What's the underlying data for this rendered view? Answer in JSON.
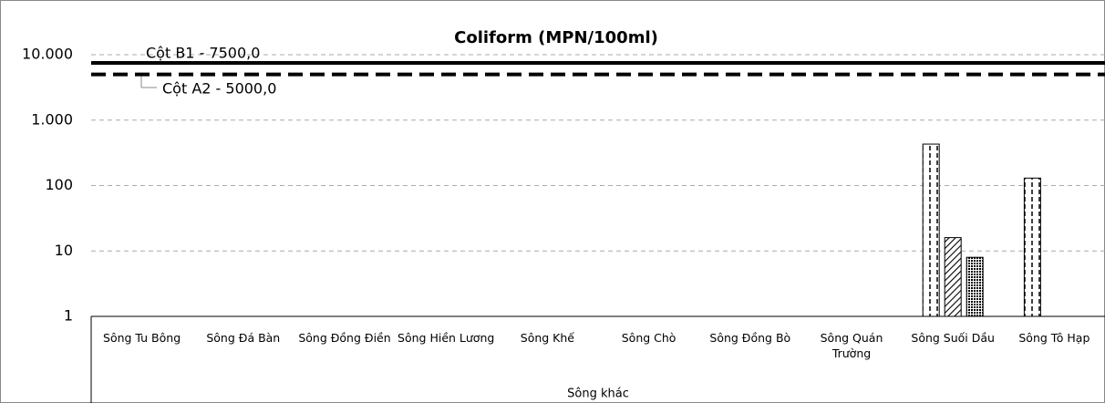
{
  "chart_data": {
    "type": "bar",
    "title": "Coliform (MPN/100ml)",
    "log_scale": true,
    "grid": true,
    "ylim": [
      1,
      10000
    ],
    "yticks": [
      1,
      10,
      100,
      {
        "value": 1000,
        "label": "1.000"
      },
      {
        "value": 10000,
        "label": "10.000"
      }
    ],
    "categories": [
      "Sông Tu Bông",
      "Sông Đá Bàn",
      "Sông Đồng Điền",
      "Sông Hiền Lương",
      "Sông Khế",
      "Sông Chò",
      "Sông Đồng Bò",
      "Sông Quán Trường",
      "Sông Suối Dầu",
      "Sông Tô Hạp"
    ],
    "group_label": "Sông khác",
    "series": [
      {
        "values": [
          null,
          null,
          null,
          null,
          null,
          null,
          null,
          null,
          430,
          130
        ]
      },
      {
        "values": [
          null,
          null,
          null,
          null,
          null,
          null,
          null,
          null,
          16,
          null
        ]
      },
      {
        "values": [
          null,
          null,
          null,
          null,
          null,
          null,
          null,
          null,
          8,
          null
        ]
      }
    ],
    "reference_lines": [
      {
        "label": "Cột B1 - 7500,0",
        "value": 7500,
        "style": "solid"
      },
      {
        "label": "Cột A2 - 5000,0",
        "value": 5000,
        "style": "dashed"
      }
    ]
  }
}
